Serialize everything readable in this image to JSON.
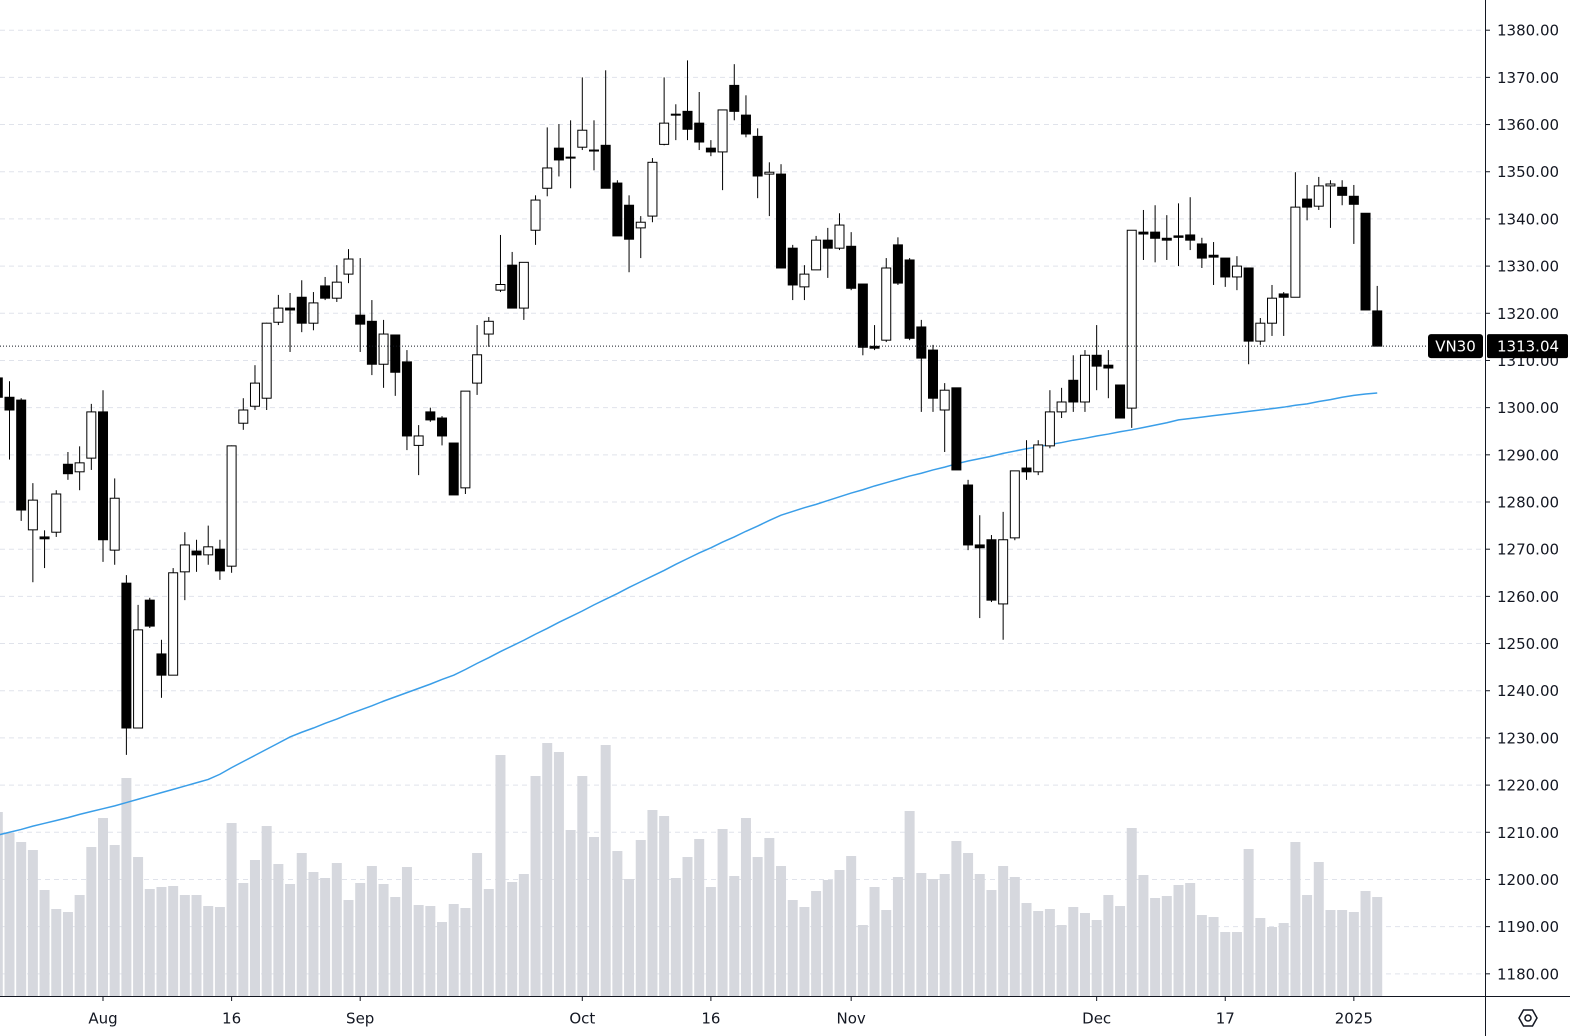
{
  "chart_data": {
    "type": "candlestick",
    "categories": [
      null,
      null,
      null,
      null,
      null,
      null,
      null,
      null,
      null,
      "Aug",
      null,
      null,
      null,
      null,
      null,
      null,
      null,
      null,
      null,
      null,
      "16",
      null,
      null,
      null,
      null,
      null,
      null,
      null,
      null,
      null,
      null,
      "Sep",
      null,
      null,
      null,
      null,
      null,
      null,
      null,
      null,
      null,
      null,
      null,
      null,
      null,
      null,
      null,
      null,
      null,
      null,
      "Oct",
      null,
      null,
      null,
      null,
      null,
      null,
      null,
      null,
      null,
      null,
      "16",
      null,
      null,
      null,
      null,
      null,
      null,
      null,
      null,
      null,
      null,
      null,
      "Nov",
      null,
      null,
      null,
      null,
      null,
      null,
      null,
      null,
      null,
      null,
      null,
      null,
      null,
      null,
      null,
      null,
      null,
      null,
      null,
      null,
      "Dec",
      null,
      null,
      null,
      null,
      null,
      null,
      null,
      null,
      null,
      null,
      "17",
      null,
      null,
      null,
      null,
      null,
      null,
      null,
      null,
      null,
      null,
      "2025",
      null,
      null
    ],
    "open": [
      1306.3,
      1302.2,
      1301.6,
      1274.1,
      1272.6,
      1273.6,
      1288,
      1286.4,
      1289.3,
      1299.1,
      1269.8,
      1262.8,
      1232.1,
      1259.2,
      1247.8,
      1243.3,
      1265.2,
      1269.6,
      1268.8,
      1270,
      1266.4,
      1296.7,
      1300.3,
      1302,
      1318.1,
      1321.1,
      1323.4,
      1317.9,
      1325.8,
      1323.2,
      1328.3,
      1319.6,
      1318.3,
      1309.2,
      1315.4,
      1309.7,
      1292,
      1299.1,
      1297.8,
      1292.5,
      1283,
      1305.2,
      1315.6,
      1324.9,
      1330.2,
      1321.1,
      1337.6,
      1346.5,
      1355,
      1353.1,
      1355.2,
      1354.4,
      1355.6,
      1347.6,
      1342.9,
      1338.1,
      1340.6,
      1355.8,
      1362,
      1362.8,
      1360.3,
      1355,
      1354.2,
      1368.3,
      1362,
      1357.5,
      1349.5,
      1349.5,
      1333.8,
      1325.6,
      1329.2,
      1335.5,
      1333.8,
      1334.2,
      1326.2,
      1313,
      1314.3,
      1334.5,
      1331.3,
      1317.1,
      1312.2,
      1299.5,
      1304.2,
      1283.6,
      1270.9,
      1272,
      1258.4,
      1272.4,
      1287.2,
      1286.4,
      1291.9,
      1299.1,
      1305.8,
      1301.2,
      1311.1,
      1309,
      1304.8,
      1299.9,
      1337.2,
      1337.2,
      1335.9,
      1336.4,
      1336.6,
      1334.7,
      1332.3,
      1331.7,
      1327.7,
      1329.6,
      1314.1,
      1317.9,
      1324.1,
      1323.4,
      1344.2,
      1342.7,
      1347,
      1346.7,
      1344.8,
      1341.2,
      1320.5
    ],
    "high": [
      1306.5,
      1305.6,
      1302,
      1284,
      1274,
      1282.5,
      1290.6,
      1291.8,
      1300.8,
      1303.7,
      1285,
      1264.5,
      1258.2,
      1259.7,
      1250.8,
      1266,
      1273.6,
      1272,
      1275,
      1272,
      1292,
      1302,
      1309,
      1318,
      1323.9,
      1324.3,
      1327,
      1324.5,
      1327.7,
      1330.2,
      1333.6,
      1331.7,
      1322.8,
      1318.6,
      1315.4,
      1312.2,
      1296.3,
      1300,
      1298.2,
      1292.5,
      1303.5,
      1317.5,
      1319.2,
      1336.6,
      1333,
      1330.8,
      1345,
      1359.4,
      1360.1,
      1360.9,
      1370,
      1360.9,
      1371.5,
      1348.2,
      1345,
      1340.6,
      1352.9,
      1370,
      1364.3,
      1373.6,
      1366.9,
      1356.7,
      1363.1,
      1372.8,
      1366.2,
      1359.2,
      1352,
      1351.6,
      1334.5,
      1330.2,
      1336.4,
      1338.1,
      1341.2,
      1337.2,
      1326.2,
      1317.5,
      1331.7,
      1336.1,
      1331.7,
      1318.6,
      1313.3,
      1305.2,
      1304.2,
      1284.7,
      1277.2,
      1273,
      1277.9,
      1286.6,
      1293.1,
      1293.1,
      1303.7,
      1304.2,
      1311.1,
      1312.2,
      1317.5,
      1312.2,
      1304.8,
      1337.6,
      1341.9,
      1342.9,
      1340.8,
      1343.3,
      1344.6,
      1336,
      1335.1,
      1331.7,
      1332.1,
      1329.6,
      1319,
      1326,
      1324.5,
      1349.9,
      1347.2,
      1348.9,
      1348.2,
      1348.2,
      1347.2,
      1341.2,
      1325.8
    ],
    "low": [
      1300,
      1289,
      1276,
      1263,
      1266,
      1272.6,
      1284.7,
      1282.5,
      1286.8,
      1267.3,
      1266.7,
      1226.4,
      1232.1,
      1253.3,
      1238.5,
      1243.3,
      1259.2,
      1265.2,
      1266.7,
      1263.5,
      1265,
      1295.3,
      1299.5,
      1299.5,
      1317.5,
      1311.8,
      1316,
      1316.4,
      1322.8,
      1322.4,
      1326.4,
      1311.8,
      1306.9,
      1304.2,
      1302.5,
      1291,
      1285.7,
      1297,
      1292,
      1281.5,
      1281.7,
      1302.7,
      1312.9,
      1324.5,
      1321.1,
      1318.6,
      1334.5,
      1344.8,
      1349,
      1346.5,
      1354.6,
      1350.3,
      1346.5,
      1336.4,
      1328.7,
      1331.7,
      1339.3,
      1355.6,
      1356.7,
      1356.7,
      1354.6,
      1353.3,
      1346.1,
      1360.9,
      1357.3,
      1344.4,
      1340.6,
      1329.6,
      1322.8,
      1322.8,
      1329.2,
      1327.5,
      1333.4,
      1324.9,
      1311.1,
      1312.2,
      1313.9,
      1326,
      1314.3,
      1299.1,
      1299.1,
      1290.6,
      1286.8,
      1269.8,
      1255.4,
      1258.8,
      1250.8,
      1271.9,
      1284.7,
      1285.7,
      1291.4,
      1297.8,
      1299.1,
      1299.1,
      1303.7,
      1302,
      1297.8,
      1295.7,
      1331.3,
      1330.8,
      1331.3,
      1330,
      1333.4,
      1329.6,
      1326,
      1325.6,
      1324.9,
      1309.2,
      1313.3,
      1315.2,
      1315.2,
      1323.4,
      1339.7,
      1341.9,
      1338.1,
      1342.9,
      1334.7,
      1320.7,
      1313
    ],
    "close": [
      1302.2,
      1299.5,
      1278.3,
      1280.4,
      1272.2,
      1281.7,
      1286,
      1288.3,
      1299.1,
      1272,
      1280.8,
      1232.1,
      1252.9,
      1253.7,
      1243.3,
      1265,
      1270.9,
      1268.8,
      1270.5,
      1265.4,
      1291.9,
      1299.5,
      1305.2,
      1317.9,
      1321.1,
      1320.7,
      1317.9,
      1322.2,
      1323.2,
      1326.6,
      1331.5,
      1317.7,
      1309.2,
      1315.6,
      1307.5,
      1294,
      1294,
      1297.4,
      1294,
      1281.5,
      1303.5,
      1311.2,
      1318.3,
      1326.1,
      1321.1,
      1330.8,
      1344,
      1350.8,
      1352.5,
      1352.9,
      1358.8,
      1354.6,
      1346.5,
      1336.4,
      1335.7,
      1339.3,
      1352,
      1360.3,
      1362.2,
      1359,
      1356.3,
      1354.2,
      1363.1,
      1362.8,
      1358,
      1349.1,
      1349.9,
      1329.6,
      1326,
      1328.3,
      1335.5,
      1333.8,
      1338.7,
      1325.3,
      1312.8,
      1312.6,
      1329.6,
      1326.4,
      1314.7,
      1310.5,
      1302,
      1303.7,
      1286.8,
      1270.9,
      1270.3,
      1259.2,
      1272,
      1286.6,
      1286.4,
      1292.1,
      1299.1,
      1301.2,
      1301.2,
      1311.1,
      1308.8,
      1308.4,
      1297.8,
      1337.6,
      1336.8,
      1335.9,
      1335.5,
      1336.1,
      1335.5,
      1331.7,
      1331.9,
      1327.7,
      1330,
      1314.1,
      1317.9,
      1323.2,
      1323.4,
      1342.5,
      1342.5,
      1347,
      1347.4,
      1345,
      1343.1,
      1320.7,
      1313.04
    ],
    "volume": [
      184,
      163,
      154,
      146,
      106,
      87,
      84,
      101,
      149,
      178,
      151,
      218,
      139,
      107,
      109,
      110,
      101,
      101,
      90,
      89,
      173,
      113,
      136,
      170,
      132,
      112,
      143,
      124,
      118,
      133,
      96,
      113,
      130,
      112,
      99,
      129,
      91,
      90,
      74,
      92,
      88,
      143,
      107,
      241,
      114,
      122,
      220,
      253,
      244,
      166,
      220,
      159,
      251,
      145,
      117,
      156,
      186,
      180,
      118,
      139,
      157,
      109,
      167,
      120,
      178,
      139,
      158,
      130,
      96,
      89,
      105,
      116,
      126,
      140,
      71,
      109,
      86,
      119,
      185,
      123,
      117,
      122,
      155,
      143,
      122,
      106,
      130,
      119,
      93,
      85,
      87,
      71,
      89,
      83,
      76,
      101,
      90,
      168,
      121,
      98,
      100,
      111,
      113,
      81,
      79,
      64,
      64,
      147,
      78,
      69,
      73,
      154,
      101,
      134,
      86,
      86,
      84,
      105,
      99
    ],
    "moving_average": [
      1209.4,
      1210.0,
      1210.6,
      1211.3,
      1211.9,
      1212.5,
      1213.1,
      1213.8,
      1214.4,
      1215.0,
      1215.6,
      1216.3,
      1217.0,
      1217.7,
      1218.4,
      1219.1,
      1219.8,
      1220.5,
      1221.2,
      1222.3,
      1223.7,
      1225.0,
      1226.3,
      1227.6,
      1228.9,
      1230.2,
      1231.2,
      1232.1,
      1233.1,
      1234.0,
      1235.0,
      1235.9,
      1236.8,
      1237.8,
      1238.7,
      1239.6,
      1240.5,
      1241.4,
      1242.4,
      1243.3,
      1244.5,
      1245.8,
      1247.0,
      1248.3,
      1249.5,
      1250.7,
      1252.0,
      1253.2,
      1254.5,
      1255.7,
      1256.9,
      1258.2,
      1259.4,
      1260.6,
      1261.9,
      1263.1,
      1264.3,
      1265.5,
      1266.8,
      1268.0,
      1269.2,
      1270.3,
      1271.5,
      1272.6,
      1273.8,
      1274.9,
      1276.1,
      1277.2,
      1278.0,
      1278.8,
      1279.5,
      1280.3,
      1281.1,
      1281.9,
      1282.6,
      1283.4,
      1284.1,
      1284.8,
      1285.5,
      1286.1,
      1286.8,
      1287.4,
      1288.1,
      1288.7,
      1289.2,
      1289.7,
      1290.3,
      1290.8,
      1291.3,
      1291.7,
      1292.2,
      1292.6,
      1293.1,
      1293.5,
      1294.0,
      1294.4,
      1294.9,
      1295.3,
      1295.8,
      1296.3,
      1296.8,
      1297.4,
      1297.7,
      1298.0,
      1298.3,
      1298.6,
      1298.9,
      1299.2,
      1299.5,
      1299.8,
      1300.1,
      1300.5,
      1300.8,
      1301.3,
      1301.7,
      1302.2,
      1302.6,
      1302.9,
      1303.1
    ],
    "symbol": "VN30",
    "up_color": "#ffffff",
    "down_color": "#000000",
    "volume_color": "#d6d8de",
    "moving_average_color": "#3a9ee8",
    "ylim": [
      1175.3,
      1386.4
    ],
    "yticks": [
      {
        "value": 1180,
        "label": "1180.00"
      },
      {
        "value": 1190,
        "label": "1190.00"
      },
      {
        "value": 1200,
        "label": "1200.00"
      },
      {
        "value": 1210,
        "label": "1210.00"
      },
      {
        "value": 1220,
        "label": "1220.00"
      },
      {
        "value": 1230,
        "label": "1230.00"
      },
      {
        "value": 1240,
        "label": "1240.00"
      },
      {
        "value": 1250,
        "label": "1250.00"
      },
      {
        "value": 1260,
        "label": "1260.00"
      },
      {
        "value": 1270,
        "label": "1270.00"
      },
      {
        "value": 1280,
        "label": "1280.00"
      },
      {
        "value": 1290,
        "label": "1290.00"
      },
      {
        "value": 1300,
        "label": "1300.00"
      },
      {
        "value": 1310,
        "label": "1310.00"
      },
      {
        "value": 1320,
        "label": "1320.00"
      },
      {
        "value": 1330,
        "label": "1330.00"
      },
      {
        "value": 1340,
        "label": "1340.00"
      },
      {
        "value": 1350,
        "label": "1350.00"
      },
      {
        "value": 1360,
        "label": "1360.00"
      },
      {
        "value": 1370,
        "label": "1370.00"
      },
      {
        "value": 1380,
        "label": "1380.00"
      }
    ],
    "grid": true
  }
}
